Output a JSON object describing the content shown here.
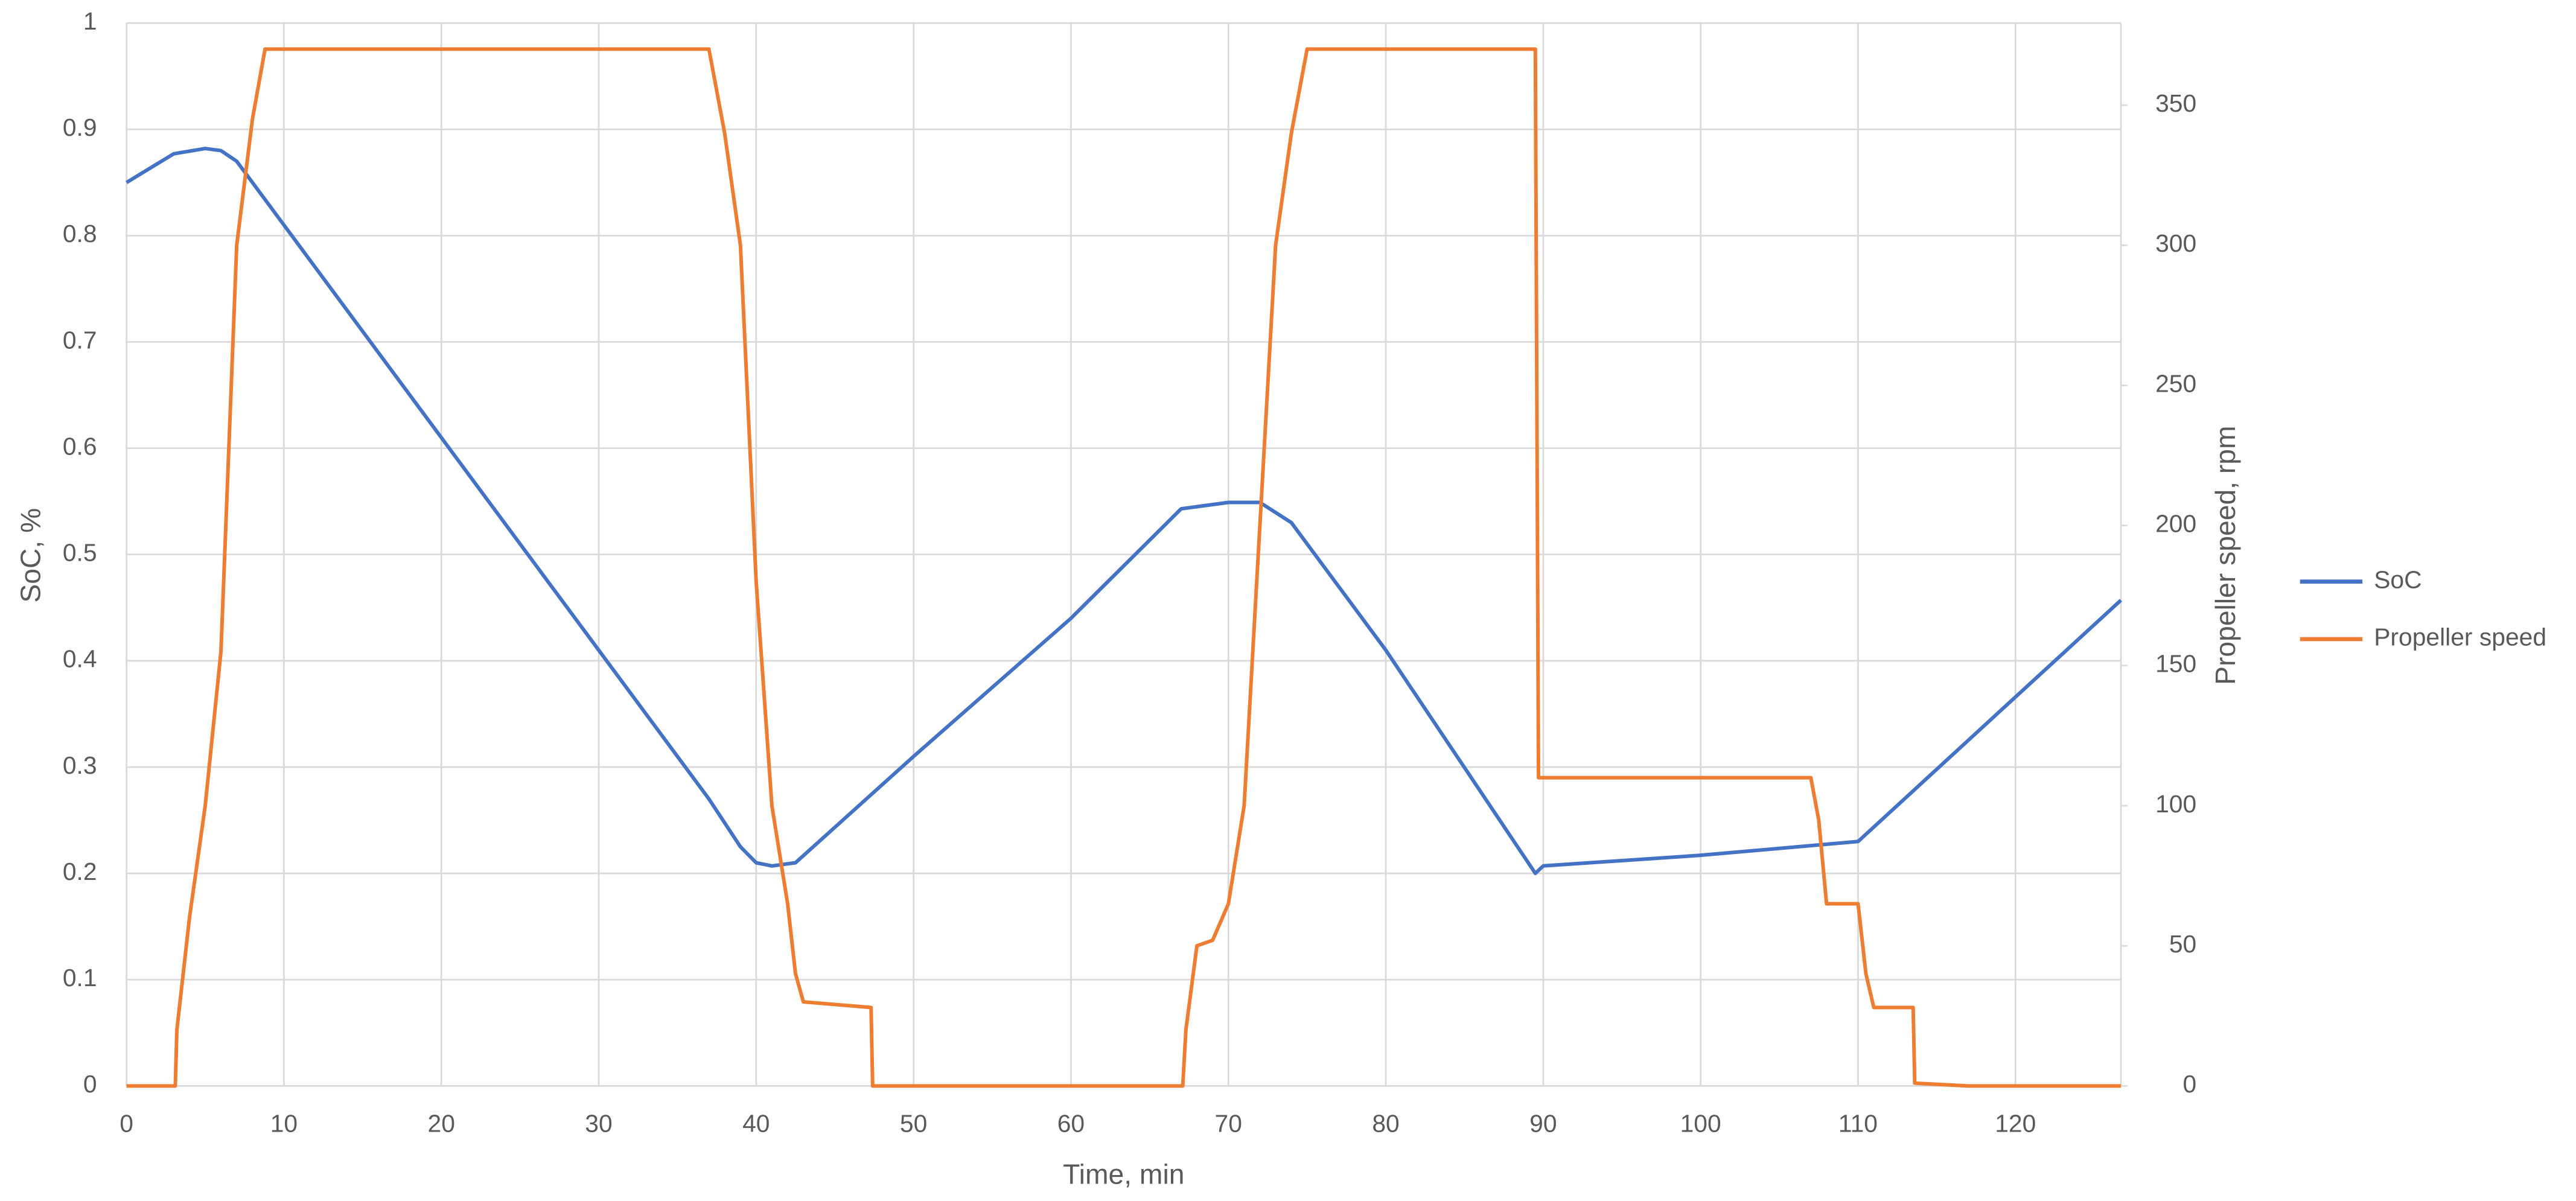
{
  "chart_data": {
    "type": "line",
    "xlabel": "Time, min",
    "ylabel": "SoC, %",
    "y2label": "Propeller speed, rpm",
    "xlim": [
      0,
      126.7
    ],
    "xticks": [
      0,
      10,
      20,
      30,
      40,
      50,
      60,
      70,
      80,
      90,
      100,
      110,
      120
    ],
    "ylim": [
      0,
      1
    ],
    "yticks": [
      0,
      0.1,
      0.2,
      0.3,
      0.4,
      0.5,
      0.6,
      0.7,
      0.8,
      0.9,
      1
    ],
    "y2lim": [
      0,
      379.3
    ],
    "y2ticks": [
      0,
      50,
      100,
      150,
      200,
      250,
      300,
      350
    ],
    "grid": true,
    "legend": "right",
    "series": [
      {
        "name": "SoC",
        "color": "#4472c4",
        "x": [
          0,
          3,
          5,
          6,
          7,
          9,
          20,
          30,
          37,
          39,
          40,
          41,
          42.5,
          50,
          60,
          67,
          70,
          72,
          74,
          77,
          80,
          89.5,
          90,
          100,
          110,
          126.7
        ],
        "values": [
          0.85,
          0.877,
          0.882,
          0.88,
          0.87,
          0.83,
          0.61,
          0.41,
          0.27,
          0.225,
          0.21,
          0.207,
          0.21,
          0.31,
          0.44,
          0.543,
          0.549,
          0.549,
          0.53,
          0.47,
          0.41,
          0.2,
          0.207,
          0.217,
          0.23,
          0.457
        ]
      },
      {
        "name": "Propeller speed",
        "color": "#ed7d31",
        "axis": "y2",
        "x": [
          0,
          3.1,
          3.2,
          3.5,
          4,
          4.5,
          5,
          6,
          7,
          8,
          8.8,
          10,
          37,
          38,
          39,
          40,
          41,
          42,
          42.5,
          43,
          47.3,
          47.4,
          67.1,
          67.3,
          68,
          69,
          70,
          71,
          72,
          73,
          74,
          75,
          89.5,
          89.7,
          91,
          107,
          107.5,
          108,
          110,
          110.5,
          111,
          113.5,
          113.6,
          117,
          126.7
        ],
        "values": [
          0,
          0,
          20,
          35,
          60,
          80,
          100,
          155,
          300,
          345,
          370,
          370,
          370,
          340,
          300,
          180,
          100,
          65,
          40,
          30,
          28,
          0,
          0,
          20,
          50,
          52,
          65,
          100,
          200,
          300,
          340,
          370,
          370,
          110,
          110,
          110,
          95,
          65,
          65,
          40,
          28,
          28,
          1,
          0,
          0
        ]
      }
    ]
  }
}
